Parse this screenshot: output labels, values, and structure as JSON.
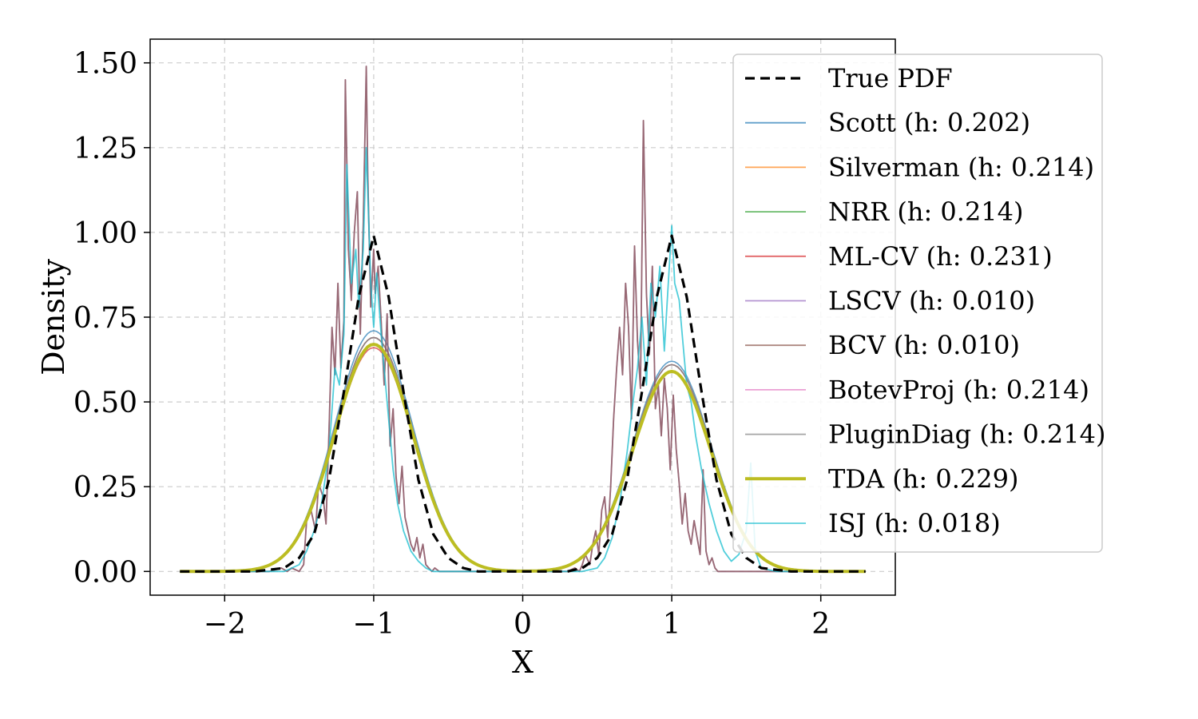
{
  "chart_data": {
    "type": "line",
    "title": "",
    "xlabel": "X",
    "ylabel": "Density",
    "xlim": [
      -2.5,
      2.5
    ],
    "ylim": [
      -0.07,
      1.57
    ],
    "xticks": [
      -2,
      -1,
      0,
      1,
      2
    ],
    "xtick_labels": [
      "−2",
      "−1",
      "0",
      "1",
      "2"
    ],
    "yticks": [
      0.0,
      0.25,
      0.5,
      0.75,
      1.0,
      1.25,
      1.5
    ],
    "ytick_labels": [
      "0.00",
      "0.25",
      "0.50",
      "0.75",
      "1.00",
      "1.25",
      "1.50"
    ],
    "grid": true,
    "legend_position": "top-right",
    "true_pdf": {
      "name": "True PDF",
      "color": "#000000",
      "x": [
        -2.3,
        -2.0,
        -1.8,
        -1.6,
        -1.5,
        -1.4,
        -1.3,
        -1.2,
        -1.1,
        -1.0,
        -0.9,
        -0.8,
        -0.7,
        -0.6,
        -0.5,
        -0.4,
        -0.3,
        -0.2,
        0.0,
        0.2,
        0.3,
        0.4,
        0.5,
        0.6,
        0.7,
        0.8,
        0.9,
        1.0,
        1.1,
        1.2,
        1.3,
        1.4,
        1.5,
        1.6,
        1.8,
        2.0,
        2.3
      ],
      "y": [
        0.0,
        0.0,
        0.0,
        0.01,
        0.04,
        0.11,
        0.27,
        0.53,
        0.81,
        0.99,
        0.81,
        0.53,
        0.27,
        0.11,
        0.04,
        0.01,
        0.0,
        0.0,
        0.0,
        0.0,
        0.0,
        0.01,
        0.04,
        0.11,
        0.27,
        0.53,
        0.81,
        0.99,
        0.81,
        0.53,
        0.27,
        0.11,
        0.04,
        0.01,
        0.0,
        0.0,
        0.0
      ]
    },
    "smooth_series": [
      {
        "name": "Scott",
        "h": "0.202",
        "color": "#1f77b4",
        "peak1": 0.71,
        "peak2": 0.62
      },
      {
        "name": "Silverman",
        "h": "0.214",
        "color": "#ff7f0e",
        "peak1": 0.69,
        "peak2": 0.61
      },
      {
        "name": "NRR",
        "h": "0.214",
        "color": "#2ca02c",
        "peak1": 0.69,
        "peak2": 0.61
      },
      {
        "name": "ML-CV",
        "h": "0.231",
        "color": "#d62728",
        "peak1": 0.66,
        "peak2": 0.59
      },
      {
        "name": "BotevProj",
        "h": "0.214",
        "color": "#e377c2",
        "peak1": 0.69,
        "peak2": 0.61
      },
      {
        "name": "PluginDiag",
        "h": "0.214",
        "color": "#7f7f7f",
        "peak1": 0.69,
        "peak2": 0.61
      },
      {
        "name": "TDA",
        "h": "0.229",
        "color": "#bcbd22",
        "peak1": 0.67,
        "peak2": 0.59
      }
    ],
    "noisy_series": [
      {
        "name": "LSCV",
        "h": "0.010",
        "color": "#9467bd",
        "x": [
          -2.3,
          -1.7,
          -1.62,
          -1.58,
          -1.55,
          -1.5,
          -1.47,
          -1.45,
          -1.42,
          -1.39,
          -1.37,
          -1.34,
          -1.32,
          -1.3,
          -1.28,
          -1.26,
          -1.24,
          -1.22,
          -1.2,
          -1.19,
          -1.17,
          -1.15,
          -1.13,
          -1.11,
          -1.09,
          -1.07,
          -1.05,
          -1.04,
          -1.02,
          -1.0,
          -0.99,
          -0.97,
          -0.95,
          -0.93,
          -0.91,
          -0.89,
          -0.87,
          -0.85,
          -0.83,
          -0.81,
          -0.79,
          -0.77,
          -0.75,
          -0.73,
          -0.71,
          -0.69,
          -0.67,
          -0.65,
          -0.63,
          -0.61,
          -0.59,
          -0.56,
          -0.54,
          -0.5,
          -0.45,
          -0.3,
          0.0,
          0.3,
          0.35,
          0.38,
          0.4,
          0.42,
          0.45,
          0.47,
          0.49,
          0.51,
          0.53,
          0.55,
          0.57,
          0.59,
          0.61,
          0.63,
          0.65,
          0.67,
          0.69,
          0.71,
          0.73,
          0.75,
          0.77,
          0.79,
          0.81,
          0.83,
          0.85,
          0.87,
          0.89,
          0.91,
          0.93,
          0.95,
          0.97,
          0.99,
          1.01,
          1.03,
          1.05,
          1.07,
          1.09,
          1.11,
          1.13,
          1.15,
          1.17,
          1.19,
          1.21,
          1.23,
          1.25,
          1.27,
          1.29,
          1.31,
          1.33,
          1.35,
          1.37,
          1.39,
          1.41,
          1.43,
          1.45,
          1.47,
          1.49,
          1.51,
          1.53,
          1.55,
          1.57,
          1.6,
          1.63,
          1.7,
          2.3
        ],
        "y": [
          0.0,
          0.0,
          0.01,
          0.0,
          0.01,
          0.0,
          0.02,
          0.15,
          0.18,
          0.12,
          0.26,
          0.22,
          0.14,
          0.41,
          0.72,
          0.58,
          0.85,
          0.6,
          0.74,
          1.45,
          0.95,
          0.8,
          1.0,
          1.12,
          0.7,
          1.02,
          1.49,
          1.18,
          0.78,
          0.95,
          0.82,
          0.9,
          0.74,
          0.55,
          0.76,
          0.37,
          0.48,
          0.28,
          0.2,
          0.31,
          0.16,
          0.12,
          0.08,
          0.06,
          0.1,
          0.04,
          0.08,
          0.02,
          0.01,
          0.0,
          0.01,
          0.0,
          0.0,
          0.0,
          0.0,
          0.0,
          0.0,
          0.0,
          0.01,
          0.0,
          0.02,
          0.05,
          0.02,
          0.08,
          0.12,
          0.05,
          0.18,
          0.22,
          0.1,
          0.25,
          0.45,
          0.6,
          0.72,
          0.58,
          0.85,
          0.72,
          0.45,
          0.96,
          0.68,
          0.54,
          1.33,
          0.82,
          0.64,
          0.9,
          0.48,
          0.55,
          0.4,
          0.57,
          0.48,
          0.3,
          0.52,
          0.36,
          0.26,
          0.14,
          0.23,
          0.12,
          0.08,
          0.15,
          0.1,
          0.05,
          0.3,
          0.06,
          0.02,
          0.04,
          0.01,
          0.0,
          0.0,
          0.0,
          0.0,
          0.0,
          0.0,
          0.0,
          0.0,
          0.0,
          0.0,
          0.0,
          0.0,
          0.0,
          0.0,
          0.0,
          0.0,
          0.0,
          0.0
        ]
      },
      {
        "name": "BCV",
        "h": "0.010",
        "color": "#8c564b",
        "x": [
          -2.3,
          -1.7,
          -1.62,
          -1.58,
          -1.55,
          -1.5,
          -1.47,
          -1.45,
          -1.42,
          -1.39,
          -1.37,
          -1.34,
          -1.32,
          -1.3,
          -1.28,
          -1.26,
          -1.24,
          -1.22,
          -1.2,
          -1.19,
          -1.17,
          -1.15,
          -1.13,
          -1.11,
          -1.09,
          -1.07,
          -1.05,
          -1.04,
          -1.02,
          -1.0,
          -0.99,
          -0.97,
          -0.95,
          -0.93,
          -0.91,
          -0.89,
          -0.87,
          -0.85,
          -0.83,
          -0.81,
          -0.79,
          -0.77,
          -0.75,
          -0.73,
          -0.71,
          -0.69,
          -0.67,
          -0.65,
          -0.63,
          -0.61,
          -0.59,
          -0.56,
          -0.54,
          -0.5,
          -0.45,
          -0.3,
          0.0,
          0.3,
          0.35,
          0.38,
          0.4,
          0.42,
          0.45,
          0.47,
          0.49,
          0.51,
          0.53,
          0.55,
          0.57,
          0.59,
          0.61,
          0.63,
          0.65,
          0.67,
          0.69,
          0.71,
          0.73,
          0.75,
          0.77,
          0.79,
          0.81,
          0.83,
          0.85,
          0.87,
          0.89,
          0.91,
          0.93,
          0.95,
          0.97,
          0.99,
          1.01,
          1.03,
          1.05,
          1.07,
          1.09,
          1.11,
          1.13,
          1.15,
          1.17,
          1.19,
          1.21,
          1.23,
          1.25,
          1.27,
          1.29,
          1.31,
          1.33,
          1.35,
          1.37,
          1.39,
          1.41,
          1.43,
          1.45,
          1.47,
          1.49,
          1.51,
          1.53,
          1.55,
          1.57,
          1.6,
          1.63,
          1.7,
          2.3
        ],
        "y": [
          0.0,
          0.0,
          0.01,
          0.0,
          0.01,
          0.0,
          0.02,
          0.15,
          0.18,
          0.12,
          0.26,
          0.22,
          0.14,
          0.41,
          0.72,
          0.58,
          0.85,
          0.6,
          0.74,
          1.45,
          0.95,
          0.8,
          1.0,
          1.12,
          0.7,
          1.02,
          1.49,
          1.18,
          0.78,
          0.95,
          0.82,
          0.9,
          0.74,
          0.55,
          0.76,
          0.37,
          0.48,
          0.28,
          0.2,
          0.31,
          0.16,
          0.12,
          0.08,
          0.06,
          0.1,
          0.04,
          0.08,
          0.02,
          0.01,
          0.0,
          0.01,
          0.0,
          0.0,
          0.0,
          0.0,
          0.0,
          0.0,
          0.0,
          0.01,
          0.0,
          0.02,
          0.05,
          0.02,
          0.08,
          0.12,
          0.05,
          0.18,
          0.22,
          0.1,
          0.25,
          0.45,
          0.6,
          0.72,
          0.58,
          0.85,
          0.72,
          0.45,
          0.96,
          0.68,
          0.54,
          1.33,
          0.82,
          0.64,
          0.9,
          0.48,
          0.55,
          0.4,
          0.57,
          0.48,
          0.3,
          0.52,
          0.36,
          0.26,
          0.14,
          0.23,
          0.12,
          0.08,
          0.15,
          0.1,
          0.05,
          0.3,
          0.06,
          0.02,
          0.04,
          0.01,
          0.0,
          0.0,
          0.0,
          0.0,
          0.0,
          0.0,
          0.0,
          0.0,
          0.0,
          0.0,
          0.0,
          0.0,
          0.0,
          0.0,
          0.0,
          0.0,
          0.0,
          0.0
        ]
      },
      {
        "name": "ISJ",
        "h": "0.018",
        "color": "#17becf",
        "x": [
          -2.3,
          -1.6,
          -1.5,
          -1.45,
          -1.4,
          -1.35,
          -1.3,
          -1.26,
          -1.23,
          -1.2,
          -1.18,
          -1.15,
          -1.12,
          -1.1,
          -1.07,
          -1.05,
          -1.02,
          -1.0,
          -0.98,
          -0.95,
          -0.92,
          -0.9,
          -0.87,
          -0.84,
          -0.8,
          -0.75,
          -0.7,
          -0.65,
          -0.6,
          -0.5,
          0.0,
          0.4,
          0.5,
          0.55,
          0.6,
          0.65,
          0.7,
          0.74,
          0.77,
          0.8,
          0.83,
          0.86,
          0.89,
          0.92,
          0.95,
          0.97,
          1.0,
          1.02,
          1.05,
          1.08,
          1.1,
          1.13,
          1.16,
          1.2,
          1.25,
          1.3,
          1.35,
          1.4,
          1.45,
          1.5,
          1.53,
          1.56,
          1.6,
          1.7,
          2.3
        ],
        "y": [
          0.0,
          0.0,
          0.02,
          0.06,
          0.12,
          0.2,
          0.35,
          0.6,
          0.55,
          0.7,
          1.2,
          0.85,
          0.95,
          0.78,
          0.95,
          1.25,
          0.85,
          0.72,
          0.88,
          0.7,
          0.55,
          0.45,
          0.3,
          0.2,
          0.12,
          0.06,
          0.03,
          0.01,
          0.0,
          0.0,
          0.0,
          0.0,
          0.01,
          0.04,
          0.1,
          0.2,
          0.35,
          0.5,
          0.6,
          0.75,
          0.55,
          0.85,
          0.75,
          0.9,
          0.65,
          0.8,
          1.02,
          0.85,
          0.8,
          0.65,
          0.55,
          0.5,
          0.4,
          0.3,
          0.2,
          0.12,
          0.06,
          0.03,
          0.05,
          0.12,
          0.32,
          0.06,
          0.01,
          0.0,
          0.0
        ]
      }
    ],
    "legend": [
      {
        "label": "True PDF",
        "color": "#000000",
        "style": "dashed"
      },
      {
        "label": "Scott (h: 0.202)",
        "color": "#1f77b4",
        "style": "solid"
      },
      {
        "label": "Silverman (h: 0.214)",
        "color": "#ff7f0e",
        "style": "solid"
      },
      {
        "label": "NRR (h: 0.214)",
        "color": "#2ca02c",
        "style": "solid"
      },
      {
        "label": "ML-CV (h: 0.231)",
        "color": "#d62728",
        "style": "solid"
      },
      {
        "label": "LSCV (h: 0.010)",
        "color": "#9467bd",
        "style": "solid"
      },
      {
        "label": "BCV (h: 0.010)",
        "color": "#8c564b",
        "style": "solid"
      },
      {
        "label": "BotevProj (h: 0.214)",
        "color": "#e377c2",
        "style": "solid"
      },
      {
        "label": "PluginDiag (h: 0.214)",
        "color": "#7f7f7f",
        "style": "solid"
      },
      {
        "label": "TDA (h: 0.229)",
        "color": "#bcbd22",
        "style": "thick"
      },
      {
        "label": "ISJ (h: 0.018)",
        "color": "#17becf",
        "style": "solid"
      }
    ]
  }
}
